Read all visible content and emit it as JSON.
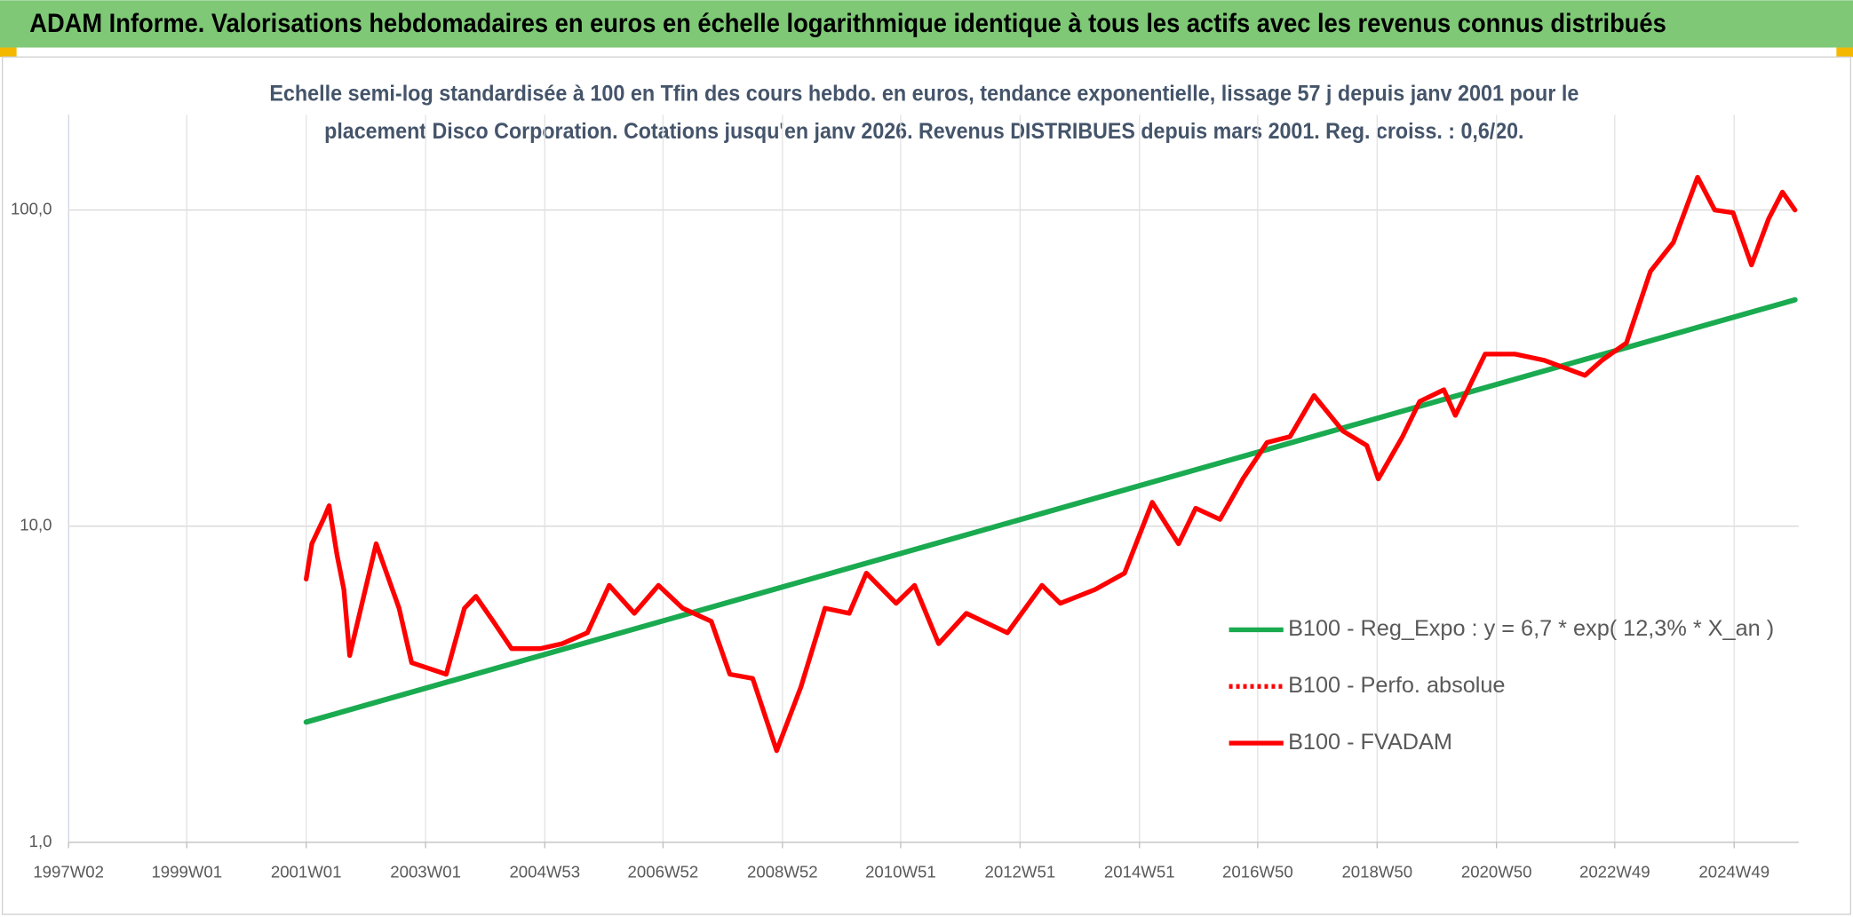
{
  "chart_data": {
    "type": "line",
    "title": "ADAM Informe. Valorisations hebdomadaires en euros en échelle logarithmique identique à tous les actifs avec les revenus connus distribués",
    "subtitle": [
      "Echelle semi-log standardisée à 100 en Tfin des cours hebdo. en euros, tendance exponentielle, lissage 57 j depuis janv 2001 pour le",
      "placement Disco Corporation. Cotations jusqu'en janv 2026. Revenus DISTRIBUES depuis mars 2001. Reg. croiss. : 0,6/20."
    ],
    "log_scale": true,
    "grid": true,
    "legend": "right",
    "xlim": [
      "1997W02",
      "2026W01"
    ],
    "xticks": [
      "1997W02",
      "1999W01",
      "2001W01",
      "2003W01",
      "2004W53",
      "2006W52",
      "2008W52",
      "2010W51",
      "2012W51",
      "2014W51",
      "2016W50",
      "2018W50",
      "2020W50",
      "2022W49",
      "2024W49"
    ],
    "ylim": [
      1,
      200
    ],
    "yticks": [
      {
        "value": 1,
        "label": "1,0"
      },
      {
        "value": 10,
        "label": "10,0"
      },
      {
        "value": 100,
        "label": "100,0"
      }
    ],
    "series": [
      {
        "name": "B100 - Reg_Expo : y = 6,7 * exp( 12,3% *  X_an )",
        "color": "#1aaa50",
        "style": "solid",
        "x": [
          "2001W01",
          "2025W50"
        ],
        "values": [
          2.4,
          52
        ]
      },
      {
        "name": "B100 - Perfo. absolue",
        "color": "#ff0000",
        "style": "dotted",
        "x": [],
        "values": []
      },
      {
        "name": "B100 - FVADAM",
        "color": "#ff0000",
        "style": "solid",
        "x": [
          "2001W01",
          "2001W06",
          "2001W16",
          "2001W21",
          "2001W28",
          "2001W34",
          "2001W39",
          "2002W10",
          "2002W30",
          "2002W41",
          "2003W19",
          "2003W35",
          "2003W45",
          "2004W08",
          "2004W24",
          "2004W49",
          "2005W16",
          "2005W38",
          "2006W05",
          "2006W27",
          "2006W48",
          "2007W17",
          "2007W42",
          "2008W06",
          "2008W26",
          "2008W47",
          "2009W16",
          "2009W37",
          "2010W06",
          "2010W21",
          "2010W47",
          "2011W11",
          "2011W32",
          "2012W04",
          "2012W40",
          "2013W18",
          "2013W34",
          "2014W12",
          "2014W38",
          "2015W10",
          "2015W33",
          "2015W48",
          "2016W17",
          "2016W37",
          "2017W06",
          "2017W26",
          "2017W47",
          "2018W20",
          "2018W41",
          "2018W51",
          "2019W20",
          "2019W35",
          "2020W04",
          "2020W14",
          "2020W40",
          "2021W14",
          "2021W39",
          "2022W23",
          "2022W38",
          "2023W07",
          "2023W28",
          "2023W48",
          "2024W17",
          "2024W32",
          "2024W48",
          "2025W12",
          "2025W27",
          "2025W39",
          "2025W50"
        ],
        "values": [
          6.8,
          8.8,
          10.5,
          11.6,
          8.1,
          6.3,
          3.9,
          8.8,
          5.5,
          3.7,
          3.4,
          5.5,
          6.0,
          5.0,
          4.1,
          4.1,
          4.25,
          4.6,
          6.5,
          5.3,
          6.5,
          5.5,
          5.0,
          3.4,
          3.3,
          1.95,
          3.1,
          5.5,
          5.3,
          7.1,
          5.7,
          6.5,
          4.25,
          5.3,
          4.6,
          6.5,
          5.7,
          6.3,
          7.1,
          11.9,
          8.8,
          11.4,
          10.5,
          14.1,
          18.4,
          19.2,
          25.9,
          20,
          18,
          14.1,
          19.2,
          24.8,
          27,
          22.4,
          35,
          35,
          33.5,
          30,
          33.5,
          38,
          64,
          79,
          127,
          100,
          98,
          67,
          94,
          114,
          100
        ]
      }
    ]
  }
}
